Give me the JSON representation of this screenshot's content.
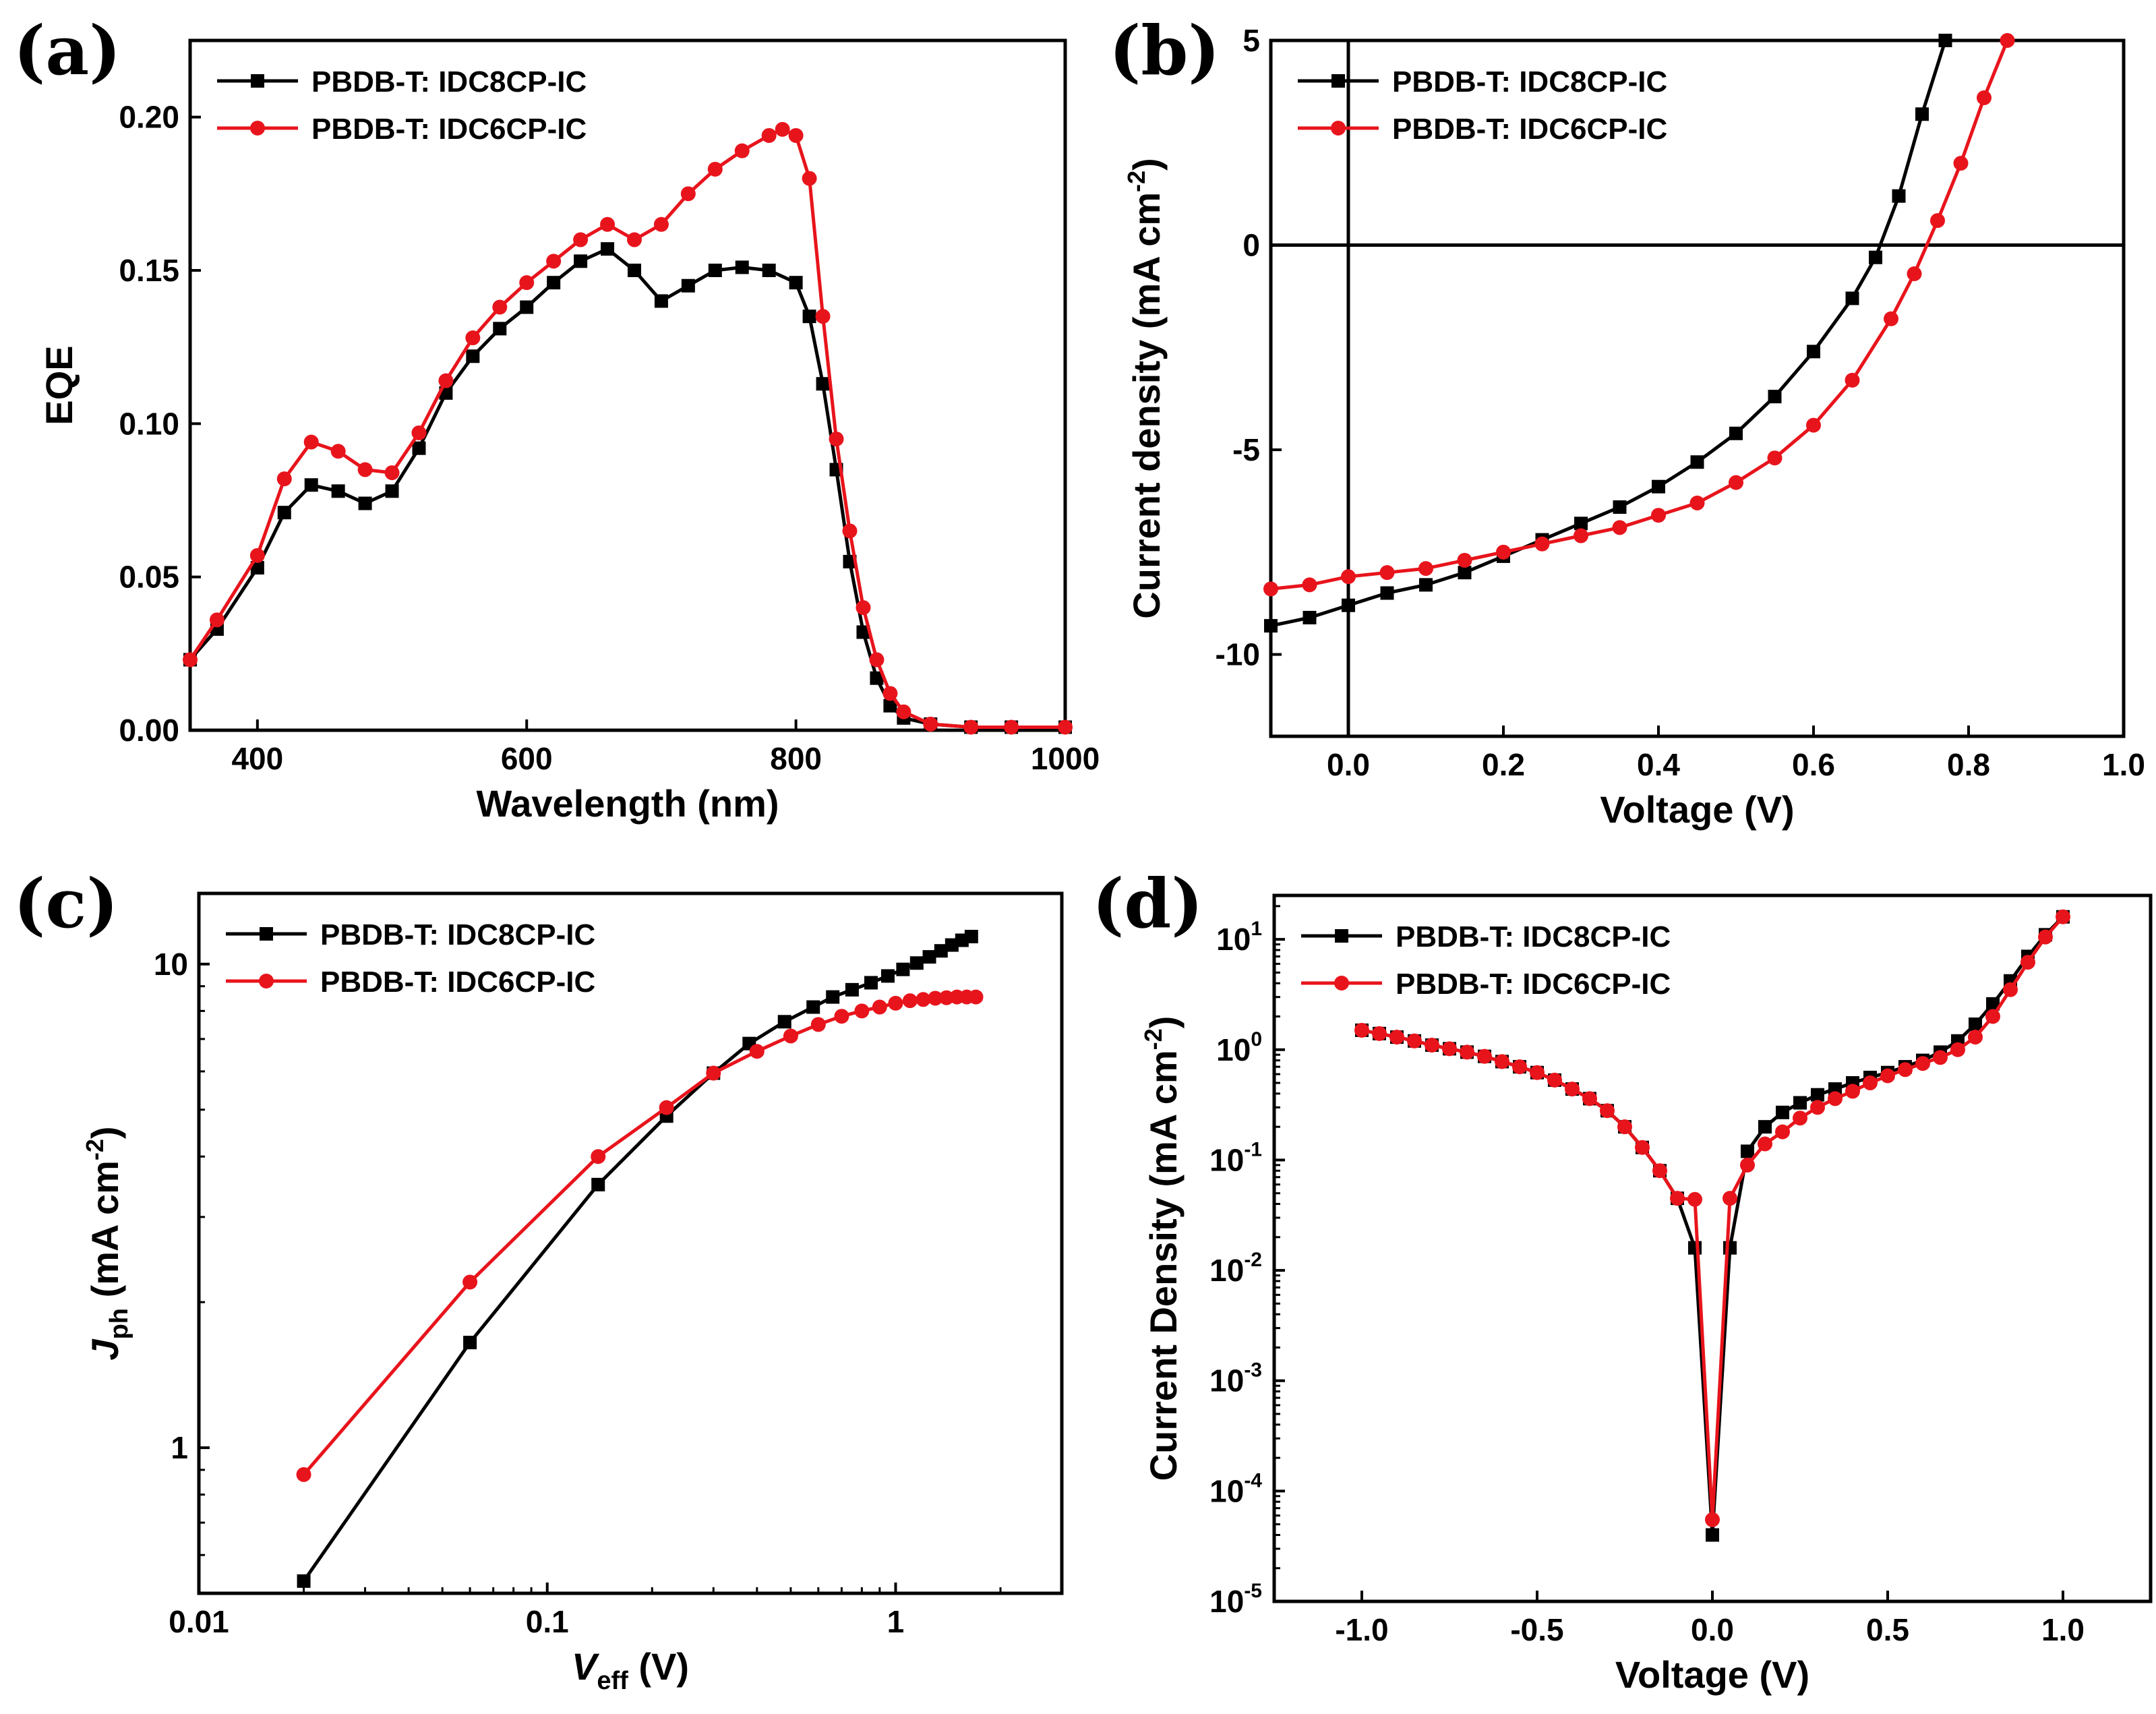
{
  "chart_data": [
    {
      "panel": "(a)",
      "type": "line",
      "xlabel": "Wavelength (nm)",
      "ylabel": "EQE",
      "xlim": [
        350,
        1000
      ],
      "ylim": [
        0,
        0.225
      ],
      "xticks": [
        400,
        600,
        800,
        1000
      ],
      "yticks": [
        0.0,
        0.05,
        0.1,
        0.15,
        0.2
      ],
      "legend": "top-left",
      "series": [
        {
          "name": "PBDB-T: IDC8CP-IC",
          "color": "#000000",
          "marker": "square",
          "x": [
            350,
            370,
            400,
            420,
            440,
            460,
            480,
            500,
            520,
            540,
            560,
            580,
            600,
            620,
            640,
            660,
            680,
            700,
            720,
            740,
            760,
            780,
            800,
            810,
            820,
            830,
            840,
            850,
            860,
            870,
            880,
            900,
            930,
            960,
            1000
          ],
          "y": [
            0.023,
            0.033,
            0.053,
            0.071,
            0.08,
            0.078,
            0.074,
            0.078,
            0.092,
            0.11,
            0.122,
            0.131,
            0.138,
            0.146,
            0.153,
            0.157,
            0.15,
            0.14,
            0.145,
            0.15,
            0.151,
            0.15,
            0.146,
            0.135,
            0.113,
            0.085,
            0.055,
            0.032,
            0.017,
            0.008,
            0.004,
            0.002,
            0.001,
            0.001,
            0.001
          ]
        },
        {
          "name": "PBDB-T: IDC6CP-IC",
          "color": "#e8141c",
          "marker": "circle",
          "x": [
            350,
            370,
            400,
            420,
            440,
            460,
            480,
            500,
            520,
            540,
            560,
            580,
            600,
            620,
            640,
            660,
            680,
            700,
            720,
            740,
            760,
            780,
            790,
            800,
            810,
            820,
            830,
            840,
            850,
            860,
            870,
            880,
            900,
            930,
            960,
            1000
          ],
          "y": [
            0.023,
            0.036,
            0.057,
            0.082,
            0.094,
            0.091,
            0.085,
            0.084,
            0.097,
            0.114,
            0.128,
            0.138,
            0.146,
            0.153,
            0.16,
            0.165,
            0.16,
            0.165,
            0.175,
            0.183,
            0.189,
            0.194,
            0.196,
            0.194,
            0.18,
            0.135,
            0.095,
            0.065,
            0.04,
            0.023,
            0.012,
            0.006,
            0.002,
            0.001,
            0.001,
            0.001
          ]
        }
      ]
    },
    {
      "panel": "(b)",
      "type": "line",
      "xlabel": "Voltage (V)",
      "ylabel": "Current density (mA cm",
      "ylabel_sup": "-2",
      "ylabel_end": ")",
      "xlim": [
        -0.1,
        1.0
      ],
      "ylim": [
        -12,
        5
      ],
      "xticks": [
        "0.0",
        "0.2",
        "0.4",
        "0.6",
        "0.8",
        "1.0"
      ],
      "yticks": [
        "-10",
        "-5",
        "0",
        "5"
      ],
      "legend": "top-left",
      "series": [
        {
          "name": "PBDB-T: IDC8CP-IC",
          "color": "#000000",
          "marker": "square",
          "x": [
            -0.1,
            -0.05,
            0,
            0.05,
            0.1,
            0.15,
            0.2,
            0.25,
            0.3,
            0.35,
            0.4,
            0.45,
            0.5,
            0.55,
            0.6,
            0.65,
            0.68,
            0.71,
            0.74,
            0.77
          ],
          "y": [
            -9.3,
            -9.1,
            -8.8,
            -8.5,
            -8.3,
            -8.0,
            -7.6,
            -7.2,
            -6.8,
            -6.4,
            -5.9,
            -5.3,
            -4.6,
            -3.7,
            -2.6,
            -1.3,
            -0.3,
            1.2,
            3.2,
            5.0
          ]
        },
        {
          "name": "PBDB-T: IDC6CP-IC",
          "color": "#e8141c",
          "marker": "circle",
          "x": [
            -0.1,
            -0.05,
            0,
            0.05,
            0.1,
            0.15,
            0.2,
            0.25,
            0.3,
            0.35,
            0.4,
            0.45,
            0.5,
            0.55,
            0.6,
            0.65,
            0.7,
            0.73,
            0.76,
            0.79,
            0.82,
            0.85
          ],
          "y": [
            -8.4,
            -8.3,
            -8.1,
            -8.0,
            -7.9,
            -7.7,
            -7.5,
            -7.3,
            -7.1,
            -6.9,
            -6.6,
            -6.3,
            -5.8,
            -5.2,
            -4.4,
            -3.3,
            -1.8,
            -0.7,
            0.6,
            2.0,
            3.6,
            5.0
          ]
        }
      ]
    },
    {
      "panel": "(c)",
      "type": "line",
      "xscale": "log",
      "yscale": "log",
      "xlabel": "V",
      "xlabel_sub": "eff",
      "xlabel_end": " (V)",
      "ylabel": "J",
      "ylabel_sub": "ph",
      "ylabel_mid": " (mA cm",
      "ylabel_sup": "-2",
      "ylabel_end": ")",
      "xlim": [
        0.01,
        3
      ],
      "ylim": [
        0.5,
        14
      ],
      "xticks": [
        "0.01",
        "0.1",
        "1"
      ],
      "yticks": [
        "1",
        "10"
      ],
      "legend": "top-left",
      "series": [
        {
          "name": "PBDB-T: IDC8CP-IC",
          "color": "#000000",
          "marker": "square",
          "x": [
            0.02,
            0.06,
            0.14,
            0.22,
            0.3,
            0.38,
            0.48,
            0.58,
            0.66,
            0.75,
            0.85,
            0.95,
            1.05,
            1.15,
            1.25,
            1.35,
            1.45,
            1.55,
            1.65
          ],
          "y": [
            0.53,
            1.65,
            3.5,
            4.85,
            5.95,
            6.85,
            7.6,
            8.15,
            8.55,
            8.85,
            9.15,
            9.45,
            9.75,
            10.05,
            10.35,
            10.65,
            10.95,
            11.2,
            11.4
          ]
        },
        {
          "name": "PBDB-T: IDC6CP-IC",
          "color": "#e8141c",
          "marker": "circle",
          "x": [
            0.02,
            0.06,
            0.14,
            0.22,
            0.3,
            0.4,
            0.5,
            0.6,
            0.7,
            0.8,
            0.9,
            1.0,
            1.1,
            1.2,
            1.3,
            1.4,
            1.5,
            1.6,
            1.7
          ],
          "y": [
            0.88,
            2.2,
            4.0,
            5.05,
            5.95,
            6.6,
            7.1,
            7.5,
            7.8,
            8.0,
            8.15,
            8.3,
            8.4,
            8.45,
            8.5,
            8.52,
            8.55,
            8.55,
            8.55
          ]
        }
      ]
    },
    {
      "panel": "(d)",
      "type": "line",
      "yscale": "log",
      "xlabel": "Voltage (V)",
      "ylabel": "Current Density (mA cm",
      "ylabel_sup": "-2",
      "ylabel_end": ")",
      "xlim": [
        -1.25,
        1.25
      ],
      "ylim": [
        1e-05,
        25
      ],
      "xticks": [
        "-1.0",
        "-0.5",
        "0.0",
        "0.5",
        "1.0"
      ],
      "yticks": [
        {
          "base": "10",
          "exp": "1"
        },
        {
          "base": "10",
          "exp": "0"
        },
        {
          "base": "10",
          "exp": "-1"
        },
        {
          "base": "10",
          "exp": "-2"
        },
        {
          "base": "10",
          "exp": "-3"
        },
        {
          "base": "10",
          "exp": "-4"
        },
        {
          "base": "10",
          "exp": "-5"
        }
      ],
      "legend": "top-left",
      "series": [
        {
          "name": "PBDB-T: IDC8CP-IC",
          "color": "#000000",
          "marker": "square",
          "x": [
            -1.0,
            -0.95,
            -0.9,
            -0.85,
            -0.8,
            -0.75,
            -0.7,
            -0.65,
            -0.6,
            -0.55,
            -0.5,
            -0.45,
            -0.4,
            -0.35,
            -0.3,
            -0.25,
            -0.2,
            -0.15,
            -0.1,
            -0.05,
            0,
            0.05,
            0.1,
            0.15,
            0.2,
            0.25,
            0.3,
            0.35,
            0.4,
            0.45,
            0.5,
            0.55,
            0.6,
            0.65,
            0.7,
            0.75,
            0.8,
            0.85,
            0.9,
            0.95,
            1.0
          ],
          "y": [
            1.5,
            1.4,
            1.3,
            1.2,
            1.1,
            1.02,
            0.95,
            0.87,
            0.78,
            0.7,
            0.62,
            0.53,
            0.44,
            0.36,
            0.28,
            0.2,
            0.13,
            0.08,
            0.045,
            0.016,
            4e-05,
            0.016,
            0.12,
            0.2,
            0.27,
            0.33,
            0.39,
            0.44,
            0.5,
            0.56,
            0.62,
            0.7,
            0.8,
            0.95,
            1.2,
            1.7,
            2.6,
            4.2,
            7.0,
            11.0,
            16.0
          ]
        },
        {
          "name": "PBDB-T: IDC6CP-IC",
          "color": "#e8141c",
          "marker": "circle",
          "x": [
            -1.0,
            -0.95,
            -0.9,
            -0.85,
            -0.8,
            -0.75,
            -0.7,
            -0.65,
            -0.6,
            -0.55,
            -0.5,
            -0.45,
            -0.4,
            -0.35,
            -0.3,
            -0.25,
            -0.2,
            -0.15,
            -0.1,
            -0.05,
            0,
            0.05,
            0.1,
            0.15,
            0.2,
            0.25,
            0.3,
            0.35,
            0.4,
            0.45,
            0.5,
            0.55,
            0.6,
            0.65,
            0.7,
            0.75,
            0.8,
            0.85,
            0.9,
            0.95,
            1.0
          ],
          "y": [
            1.5,
            1.4,
            1.3,
            1.2,
            1.1,
            1.02,
            0.95,
            0.87,
            0.78,
            0.7,
            0.62,
            0.53,
            0.44,
            0.36,
            0.28,
            0.2,
            0.13,
            0.08,
            0.045,
            0.044,
            5.5e-05,
            0.045,
            0.09,
            0.14,
            0.18,
            0.24,
            0.3,
            0.36,
            0.42,
            0.5,
            0.58,
            0.66,
            0.75,
            0.85,
            1.0,
            1.3,
            2.0,
            3.5,
            6.2,
            10.5,
            16.0
          ]
        }
      ]
    }
  ]
}
